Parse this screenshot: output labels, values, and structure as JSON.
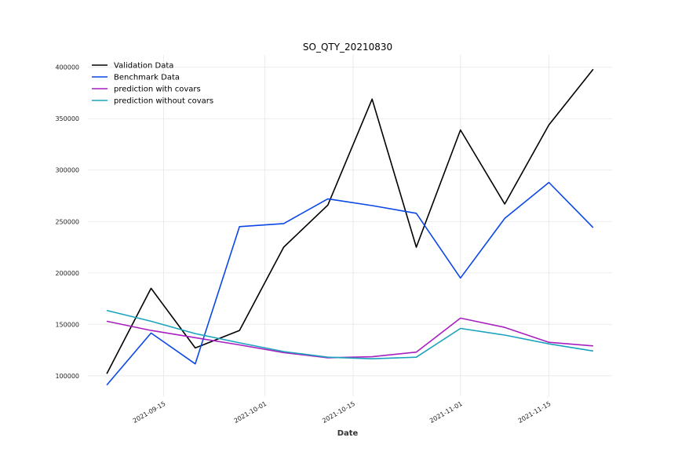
{
  "chart_data": {
    "type": "line",
    "title": "SO_QTY_20210830",
    "xlabel": "Date",
    "ylabel": "",
    "x": [
      "2021-09-06",
      "2021-09-13",
      "2021-09-20",
      "2021-09-27",
      "2021-10-04",
      "2021-10-11",
      "2021-10-18",
      "2021-10-25",
      "2021-11-01",
      "2021-11-08",
      "2021-11-15",
      "2021-11-22"
    ],
    "xlim": [
      "2021-09-03",
      "2021-11-25"
    ],
    "ylim": [
      80000,
      412000
    ],
    "x_ticks": [
      {
        "date": "2021-09-15",
        "label": "2021-09-15"
      },
      {
        "date": "2021-10-01",
        "label": "2021-10-01"
      },
      {
        "date": "2021-10-15",
        "label": "2021-10-15"
      },
      {
        "date": "2021-11-01",
        "label": "2021-11-01"
      },
      {
        "date": "2021-11-15",
        "label": "2021-11-15"
      }
    ],
    "y_ticks": [
      {
        "value": 100000,
        "label": "100000"
      },
      {
        "value": 150000,
        "label": "150000"
      },
      {
        "value": 200000,
        "label": "200000"
      },
      {
        "value": 250000,
        "label": "250000"
      },
      {
        "value": 300000,
        "label": "300000"
      },
      {
        "value": 350000,
        "label": "350000"
      },
      {
        "value": 400000,
        "label": "400000"
      }
    ],
    "grid": true,
    "legend_position": "top-left",
    "series": [
      {
        "name": "Validation Data",
        "color": "#000000",
        "values": [
          102000,
          185000,
          127000,
          144000,
          225000,
          266000,
          369000,
          225000,
          339000,
          267000,
          344000,
          398000
        ]
      },
      {
        "name": "Benchmark Data",
        "color": "#0a47e6",
        "values": [
          91000,
          141500,
          111500,
          245000,
          248000,
          272000,
          265500,
          258000,
          195000,
          253000,
          288000,
          244000
        ]
      },
      {
        "name": "prediction with covars",
        "color": "#a81fbf",
        "values": [
          153000,
          144000,
          137000,
          130000,
          122500,
          117500,
          118500,
          123000,
          156000,
          147000,
          132500,
          129000
        ]
      },
      {
        "name": "prediction without covars",
        "color": "#1aa3bd",
        "values": [
          163500,
          153000,
          141000,
          132000,
          123500,
          118000,
          116500,
          118000,
          146000,
          139500,
          131000,
          124000
        ]
      }
    ]
  }
}
